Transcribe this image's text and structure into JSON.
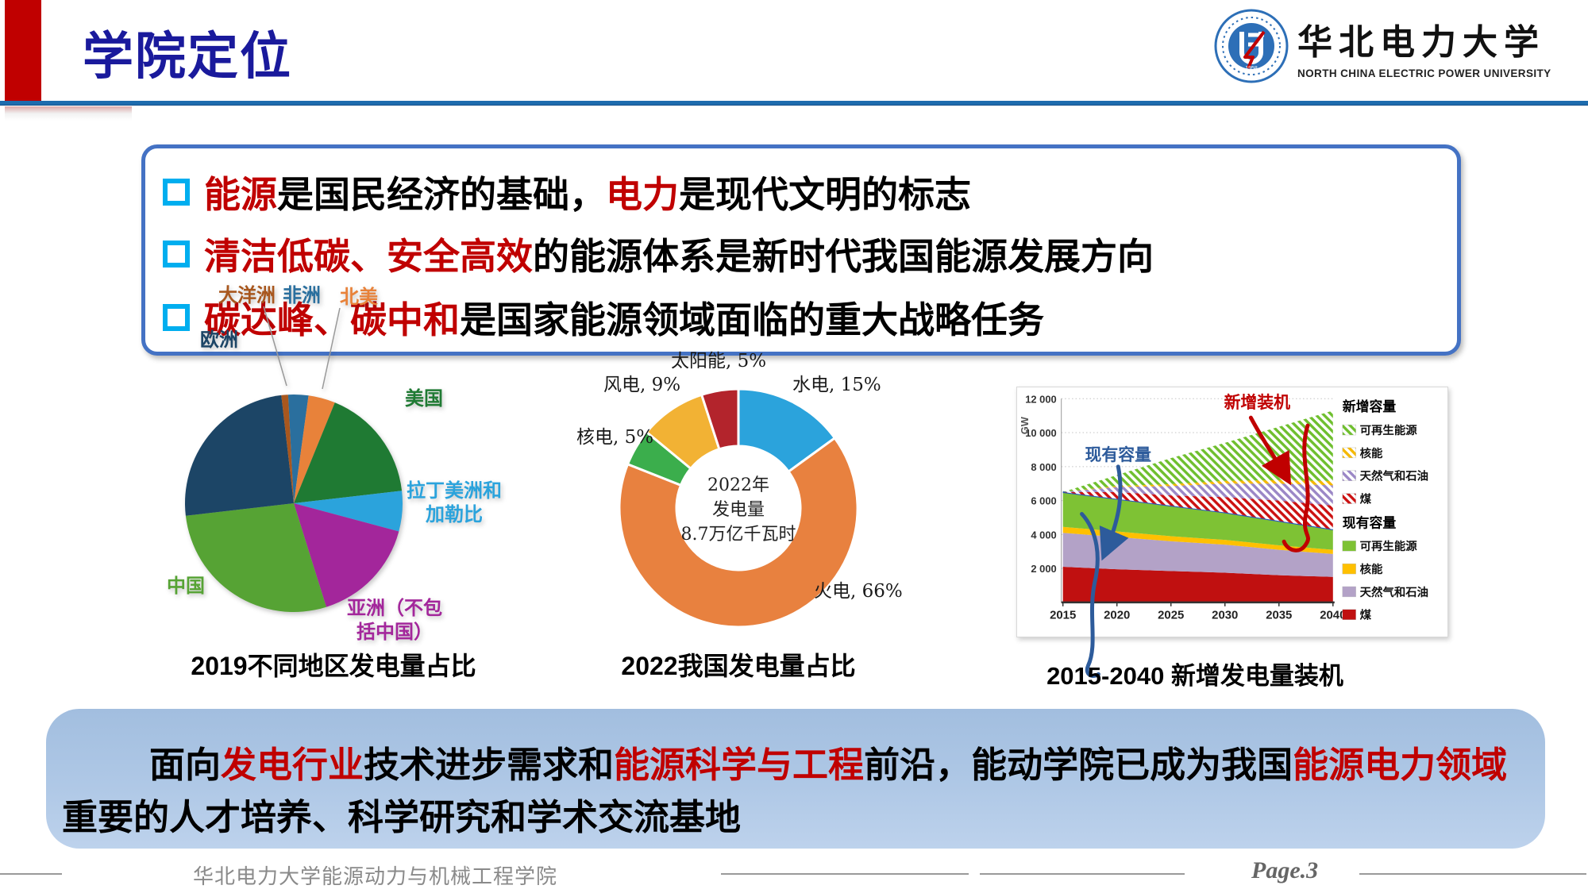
{
  "header": {
    "title": "学院定位",
    "logo": {
      "cn": "华北电力大学",
      "en": "NORTH CHINA ELECTRIC POWER UNIVERSITY"
    }
  },
  "bullets": [
    {
      "parts": [
        {
          "t": "能源",
          "red": true
        },
        {
          "t": "是国民经济的基础，",
          "red": false
        },
        {
          "t": "电力",
          "red": true
        },
        {
          "t": "是现代文明的标志",
          "red": false
        }
      ]
    },
    {
      "parts": [
        {
          "t": "清洁低碳、安全高效",
          "red": true
        },
        {
          "t": "的能源体系是新时代我国能源发展方向",
          "red": false
        }
      ]
    },
    {
      "parts": [
        {
          "t": "碳达峰、碳中和",
          "red": true
        },
        {
          "t": "是国家能源领域面临的重大战略任务",
          "red": false
        }
      ]
    }
  ],
  "chart_data": [
    {
      "type": "pie",
      "title": "2019不同地区发电量占比",
      "labels": [
        "非洲",
        "北美",
        "美国",
        "拉丁美洲和加勒比",
        "亚洲（不包括中国）",
        "中国",
        "欧洲",
        "大洋洲"
      ],
      "values": [
        3,
        4,
        17,
        6,
        16,
        28,
        25,
        1
      ],
      "colors": [
        "#2A6F9E",
        "#E8823A",
        "#1F7A33",
        "#2BA3DC",
        "#A3269B",
        "#56A334",
        "#1C4566",
        "#A8571E"
      ],
      "start_angle": -3,
      "unit": "%"
    },
    {
      "type": "donut",
      "title": "2022我国发电量占比",
      "labels": [
        "水电",
        "火电",
        "核电",
        "风电",
        "太阳能"
      ],
      "values": [
        15,
        66,
        5,
        9,
        5
      ],
      "colors": [
        "#2BA3DC",
        "#E8813F",
        "#3BAE4C",
        "#F2B234",
        "#B3242C"
      ],
      "center_text": [
        "2022年",
        "发电量",
        "8.7万亿千瓦时"
      ],
      "unit": "%"
    },
    {
      "type": "area",
      "title": "2015-2040 新增发电量装机",
      "ylabel": "GW",
      "x": [
        2015,
        2020,
        2025,
        2030,
        2035,
        2040
      ],
      "ylim": [
        0,
        12000
      ],
      "yticks": [
        2000,
        4000,
        6000,
        8000,
        10000,
        12000
      ],
      "series": [
        {
          "name": "煤（现有）",
          "values": [
            2100,
            1950,
            1850,
            1750,
            1600,
            1500
          ],
          "color": "#C01010",
          "hatch": false
        },
        {
          "name": "天然气和石油（现有）",
          "values": [
            2000,
            1900,
            1750,
            1650,
            1500,
            1350
          ],
          "color": "#B3A2C7",
          "hatch": false
        },
        {
          "name": "核能（现有）",
          "values": [
            350,
            330,
            300,
            280,
            260,
            250
          ],
          "color": "#FFC000",
          "hatch": false
        },
        {
          "name": "可再生能源（现有）",
          "values": [
            2050,
            1920,
            1800,
            1620,
            1440,
            1200
          ],
          "color": "#7EC234",
          "hatch": false
        },
        {
          "name": "煤（新增）",
          "values": [
            0,
            400,
            600,
            900,
            1200,
            1400
          ],
          "color": "#CC1111",
          "hatch": true
        },
        {
          "name": "天然气和石油（新增）",
          "values": [
            0,
            300,
            550,
            800,
            1000,
            1200
          ],
          "color": "#9B87C6",
          "hatch": true
        },
        {
          "name": "核能（新增）",
          "values": [
            0,
            60,
            120,
            160,
            200,
            250
          ],
          "color": "#F5B800",
          "hatch": true
        },
        {
          "name": "可再生能源（新增）",
          "values": [
            0,
            640,
            1530,
            2240,
            3150,
            4150
          ],
          "color": "#6FBF2E",
          "hatch": true
        }
      ],
      "existing_total_line_color": "#2457C5",
      "legend": {
        "groups": [
          {
            "header": "新增容量",
            "items": [
              {
                "label": "可再生能源",
                "color": "#6FBF2E",
                "hatch": true
              },
              {
                "label": "核能",
                "color": "#F5B800",
                "hatch": true
              },
              {
                "label": "天然气和石油",
                "color": "#9B87C6",
                "hatch": true
              },
              {
                "label": "煤",
                "color": "#CC1111",
                "hatch": true
              }
            ]
          },
          {
            "header": "现有容量",
            "items": [
              {
                "label": "可再生能源",
                "color": "#7EC234",
                "hatch": false
              },
              {
                "label": "核能",
                "color": "#FFC000",
                "hatch": false
              },
              {
                "label": "天然气和石油",
                "color": "#B3A2C7",
                "hatch": false
              },
              {
                "label": "煤",
                "color": "#C01010",
                "hatch": false
              }
            ]
          }
        ]
      },
      "annotations": [
        {
          "text": "现有容量",
          "color": "#2D5B9B"
        },
        {
          "text": "新增装机",
          "color": "#C00000"
        }
      ]
    }
  ],
  "bottom_box": {
    "line1": [
      {
        "t": "面向",
        "red": false
      },
      {
        "t": "发电行业",
        "red": true
      },
      {
        "t": "技术进步需求和",
        "red": false
      },
      {
        "t": "能源科学与工程",
        "red": true
      },
      {
        "t": "前沿，能动学院已成为我国",
        "red": false
      },
      {
        "t": "能源电力领域",
        "red": true
      }
    ],
    "line2": [
      {
        "t": "重要的人才培养、科学研究和学术交流基地",
        "red": false
      }
    ]
  },
  "footer": {
    "department": "华北电力大学能源动力与机械工程学院",
    "page": "Page.3"
  },
  "colors": {
    "accent_red": "#C00000",
    "title_blue": "#1A1A9C",
    "box_border": "#4472C4",
    "bullet_marker": "#00AEEF",
    "bottom_box_bg": "#A9C4E4",
    "header_line": "#1E6CAE"
  }
}
